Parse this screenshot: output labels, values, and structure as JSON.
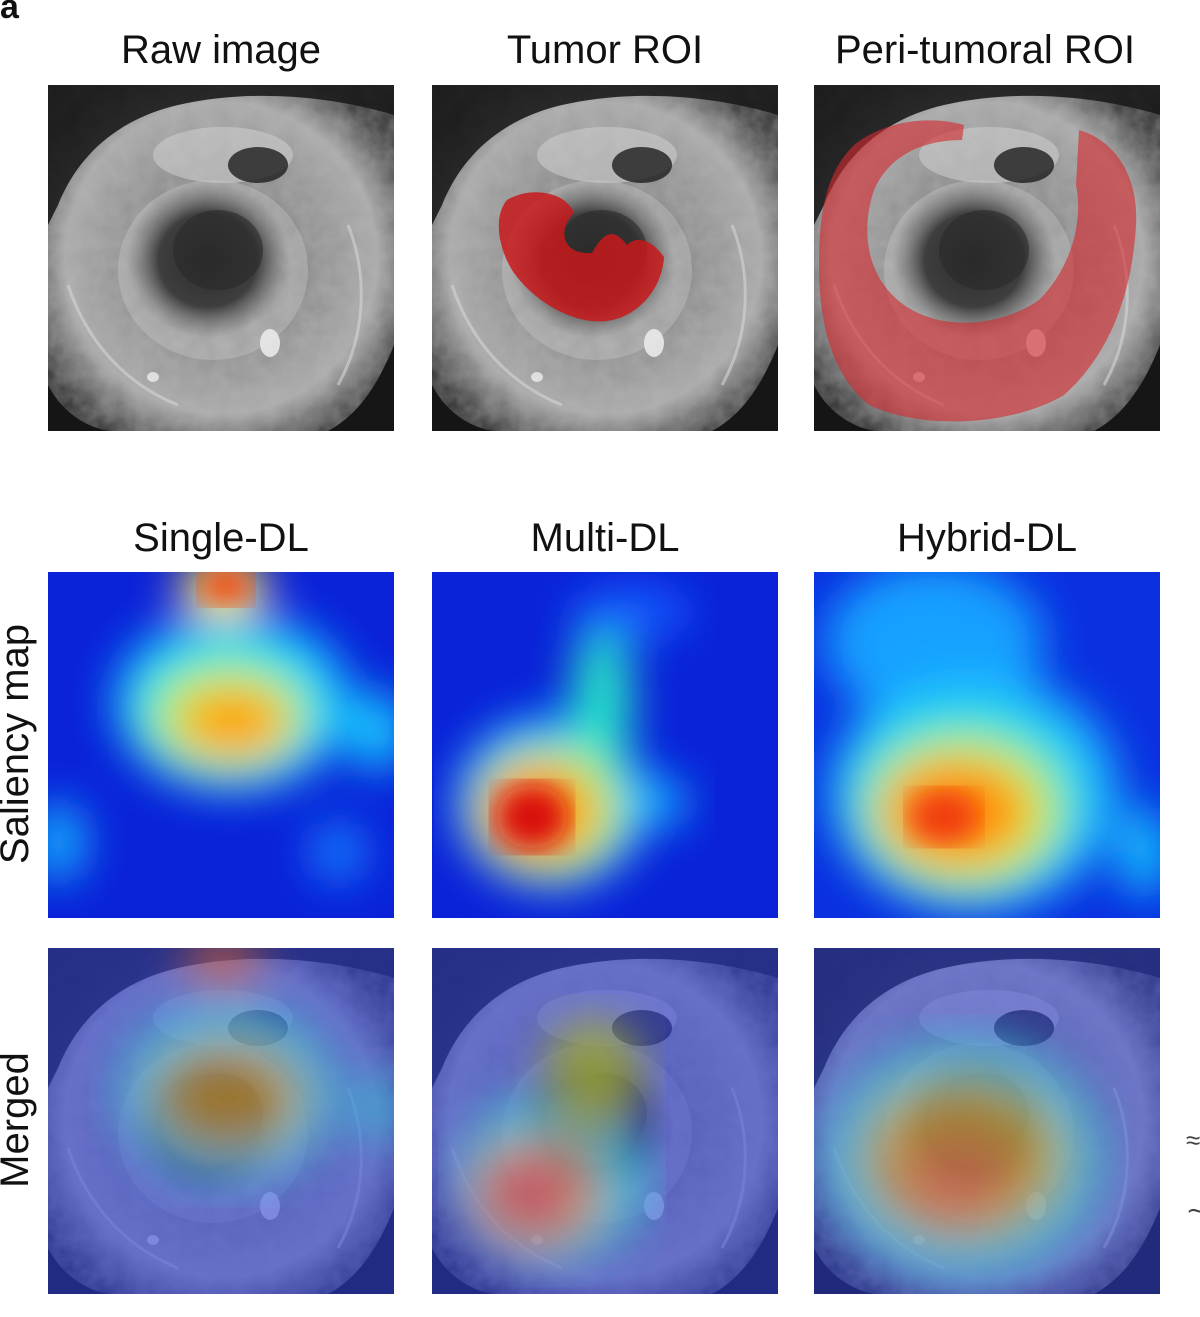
{
  "figure": {
    "panel_letter": "a",
    "columns_top": [
      "Raw image",
      "Tumor ROI",
      "Peri-tumoral ROI"
    ],
    "columns_bottom": [
      "Single-DL",
      "Multi-DL",
      "Hybrid-DL"
    ],
    "row_labels": {
      "saliency": "Saliency map",
      "merged": "Merged"
    },
    "edge_marks": [
      "≈",
      "∼"
    ]
  },
  "colors": {
    "roi_overlay": "#c8191b",
    "jet_low": "#0a22d8",
    "jet_high": "#d80a0a"
  }
}
